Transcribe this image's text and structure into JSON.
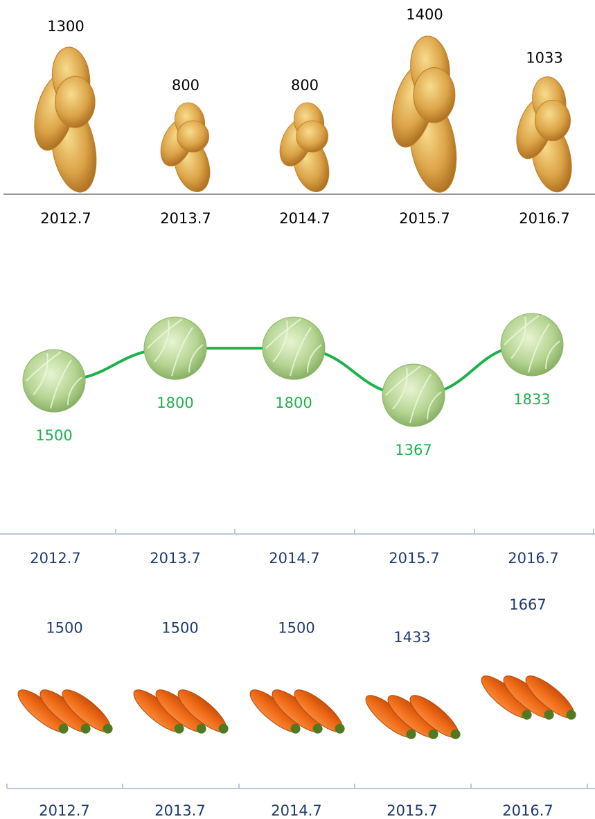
{
  "chart_data": [
    {
      "type": "pictograph",
      "categories": [
        "2012.7",
        "2013.7",
        "2014.7",
        "2015.7",
        "2016.7"
      ],
      "values": [
        1300,
        800,
        800,
        1400,
        1033
      ],
      "color": "#d9a23a",
      "text_color": "#000000"
    },
    {
      "type": "line",
      "categories": [
        "2012.7",
        "2013.7",
        "2014.7",
        "2015.7",
        "2016.7"
      ],
      "values": [
        1500,
        1800,
        1800,
        1367,
        1833
      ],
      "color": "#1db14b",
      "text_color": "#1f3a6e"
    },
    {
      "type": "pictograph-row",
      "categories": [
        "2012.7",
        "2013.7",
        "2014.7",
        "2015.7",
        "2016.7"
      ],
      "values": [
        1500,
        1500,
        1500,
        1433,
        1667
      ],
      "color": "#f26a1b",
      "text_color": "#1f3a6e"
    }
  ]
}
